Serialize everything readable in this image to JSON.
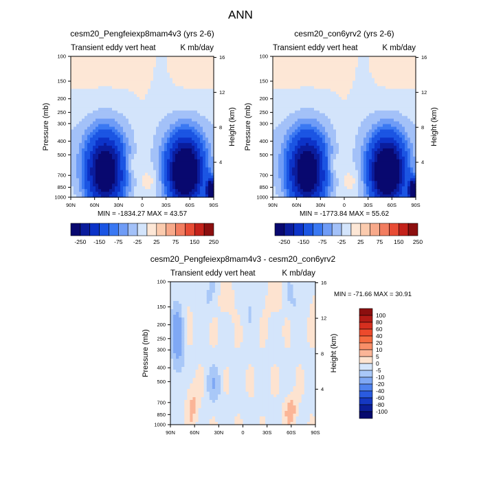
{
  "figure_title": "ANN",
  "chart_data": [
    {
      "type": "heatmap",
      "title": "cesm20_Pengfeiexp8mam4v3 (yrs 2-6)",
      "subtitle_left": "Transient eddy vert heat",
      "subtitle_right": "K mb/day",
      "xlabel": "",
      "ylabel": "Pressure (mb)",
      "ylabel_right": "Height (km)",
      "x_ticks": [
        "90N",
        "60N",
        "30N",
        "0",
        "30S",
        "60S",
        "90S"
      ],
      "y_ticks": [
        "100",
        "150",
        "200",
        "250",
        "300",
        "400",
        "500",
        "700",
        "850",
        "1000"
      ],
      "y_ticks_right": [
        "16",
        "12",
        "8",
        "4"
      ],
      "stats": "MIN = -1834.27   MAX =  43.57",
      "min": -1834.27,
      "max": 43.57,
      "colorbar": {
        "orientation": "horizontal",
        "labels": [
          "-250",
          "-150",
          "-75",
          "-25",
          "25",
          "75",
          "150",
          "250"
        ],
        "colors": [
          "#08086f",
          "#0a1c9c",
          "#0c33c8",
          "#1b55e3",
          "#3a78f2",
          "#6f9cf6",
          "#a3c1f8",
          "#d3e4fb",
          "#fde7d6",
          "#fbcbae",
          "#f7a98a",
          "#f27d60",
          "#e84c35",
          "#c4221b",
          "#8c0f0f"
        ]
      }
    },
    {
      "type": "heatmap",
      "title": "cesm20_con6yrv2 (yrs 2-6)",
      "subtitle_left": "Transient eddy vert heat",
      "subtitle_right": "K mb/day",
      "xlabel": "",
      "ylabel": "Pressure (mb)",
      "ylabel_right": "Height (km)",
      "x_ticks": [
        "90N",
        "60N",
        "30N",
        "0",
        "30S",
        "60S",
        "90S"
      ],
      "y_ticks": [
        "100",
        "150",
        "200",
        "250",
        "300",
        "400",
        "500",
        "700",
        "850",
        "1000"
      ],
      "y_ticks_right": [
        "16",
        "12",
        "8",
        "4"
      ],
      "stats": "MIN = -1773.84   MAX =  55.62",
      "min": -1773.84,
      "max": 55.62,
      "colorbar": {
        "orientation": "horizontal",
        "labels": [
          "-250",
          "-150",
          "-75",
          "-25",
          "25",
          "75",
          "150",
          "250"
        ],
        "colors": [
          "#08086f",
          "#0a1c9c",
          "#0c33c8",
          "#1b55e3",
          "#3a78f2",
          "#6f9cf6",
          "#a3c1f8",
          "#d3e4fb",
          "#fde7d6",
          "#fbcbae",
          "#f7a98a",
          "#f27d60",
          "#e84c35",
          "#c4221b",
          "#8c0f0f"
        ]
      }
    },
    {
      "type": "heatmap",
      "title": "cesm20_Pengfeiexp8mam4v3 - cesm20_con6yrv2",
      "subtitle_left": "Transient eddy vert heat",
      "subtitle_right": "K mb/day",
      "xlabel": "",
      "ylabel": "Pressure (mb)",
      "ylabel_right": "Height (km)",
      "x_ticks": [
        "90N",
        "60N",
        "30N",
        "0",
        "30S",
        "60S",
        "90S"
      ],
      "y_ticks": [
        "100",
        "150",
        "200",
        "250",
        "300",
        "400",
        "500",
        "700",
        "850",
        "1000"
      ],
      "y_ticks_right": [
        "16",
        "12",
        "8",
        "4"
      ],
      "stats": "MIN = -71.66   MAX =  30.91",
      "min": -71.66,
      "max": 30.91,
      "colorbar": {
        "orientation": "vertical",
        "labels": [
          "100",
          "80",
          "60",
          "40",
          "20",
          "10",
          "5",
          "0",
          "-5",
          "-10",
          "-20",
          "-40",
          "-60",
          "-80",
          "-100"
        ],
        "colors": [
          "#8c0f0f",
          "#b31b16",
          "#d62f1f",
          "#ec4a2c",
          "#f56b40",
          "#f98f68",
          "#fbb597",
          "#fde3d0",
          "#d4e5fb",
          "#a9c8f8",
          "#7fa8f4",
          "#4f82ee",
          "#2a5be0",
          "#1538c2",
          "#0b1e98",
          "#060a6e"
        ]
      }
    }
  ]
}
